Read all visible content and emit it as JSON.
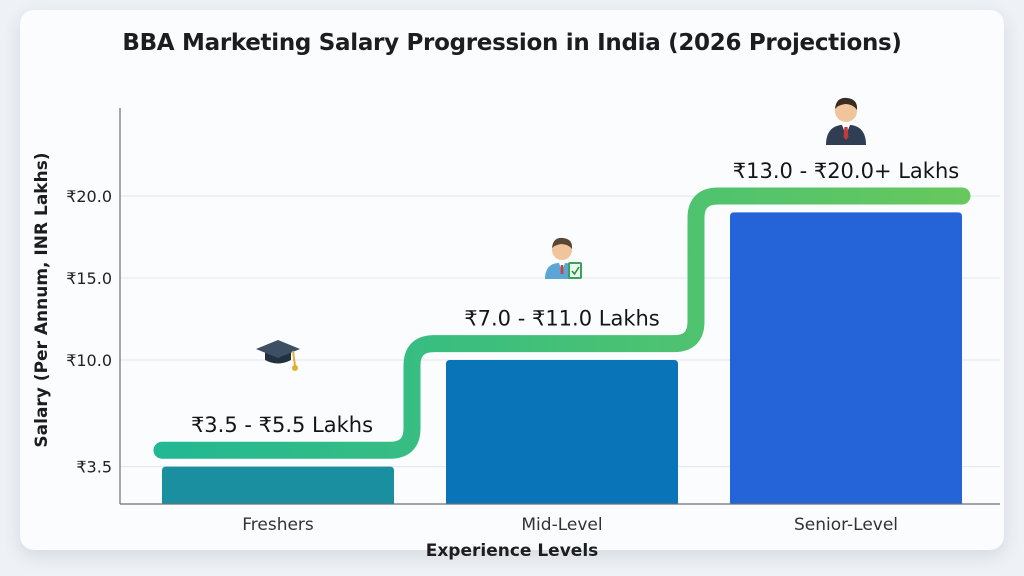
{
  "chart_data": {
    "type": "bar",
    "title": "BBA Marketing Salary Progression in India (2026 Projections)",
    "xlabel": "Experience Levels",
    "ylabel": "Salary (Per Annum, INR Lakhs)",
    "categories": [
      "Freshers",
      "Mid-Level",
      "Senior-Level"
    ],
    "values": [
      3.5,
      10.0,
      19.0
    ],
    "range_labels": [
      "₹3.5 - ₹5.5 Lakhs",
      "₹7.0 - ₹11.0 Lakhs",
      "₹13.0 - ₹20.0+ Lakhs"
    ],
    "icons": [
      "graduation-cap-icon",
      "employee-checklist-icon",
      "businessman-icon"
    ],
    "yticks": [
      {
        "value": 3.5,
        "label": "₹3.5"
      },
      {
        "value": 10.0,
        "label": "₹10.0"
      },
      {
        "value": 15.0,
        "label": "₹15.0"
      },
      {
        "value": 20.0,
        "label": "₹20.0"
      }
    ],
    "ylim": [
      0,
      24
    ],
    "step_line_levels": [
      4.5,
      11.0,
      20.0
    ],
    "grid": true,
    "legend": "none",
    "colors": {
      "bars": [
        "#1a8fa0",
        "#0a74b9",
        "#2563d9"
      ],
      "step_line_start": "#22b893",
      "step_line_end": "#66c85d"
    }
  }
}
